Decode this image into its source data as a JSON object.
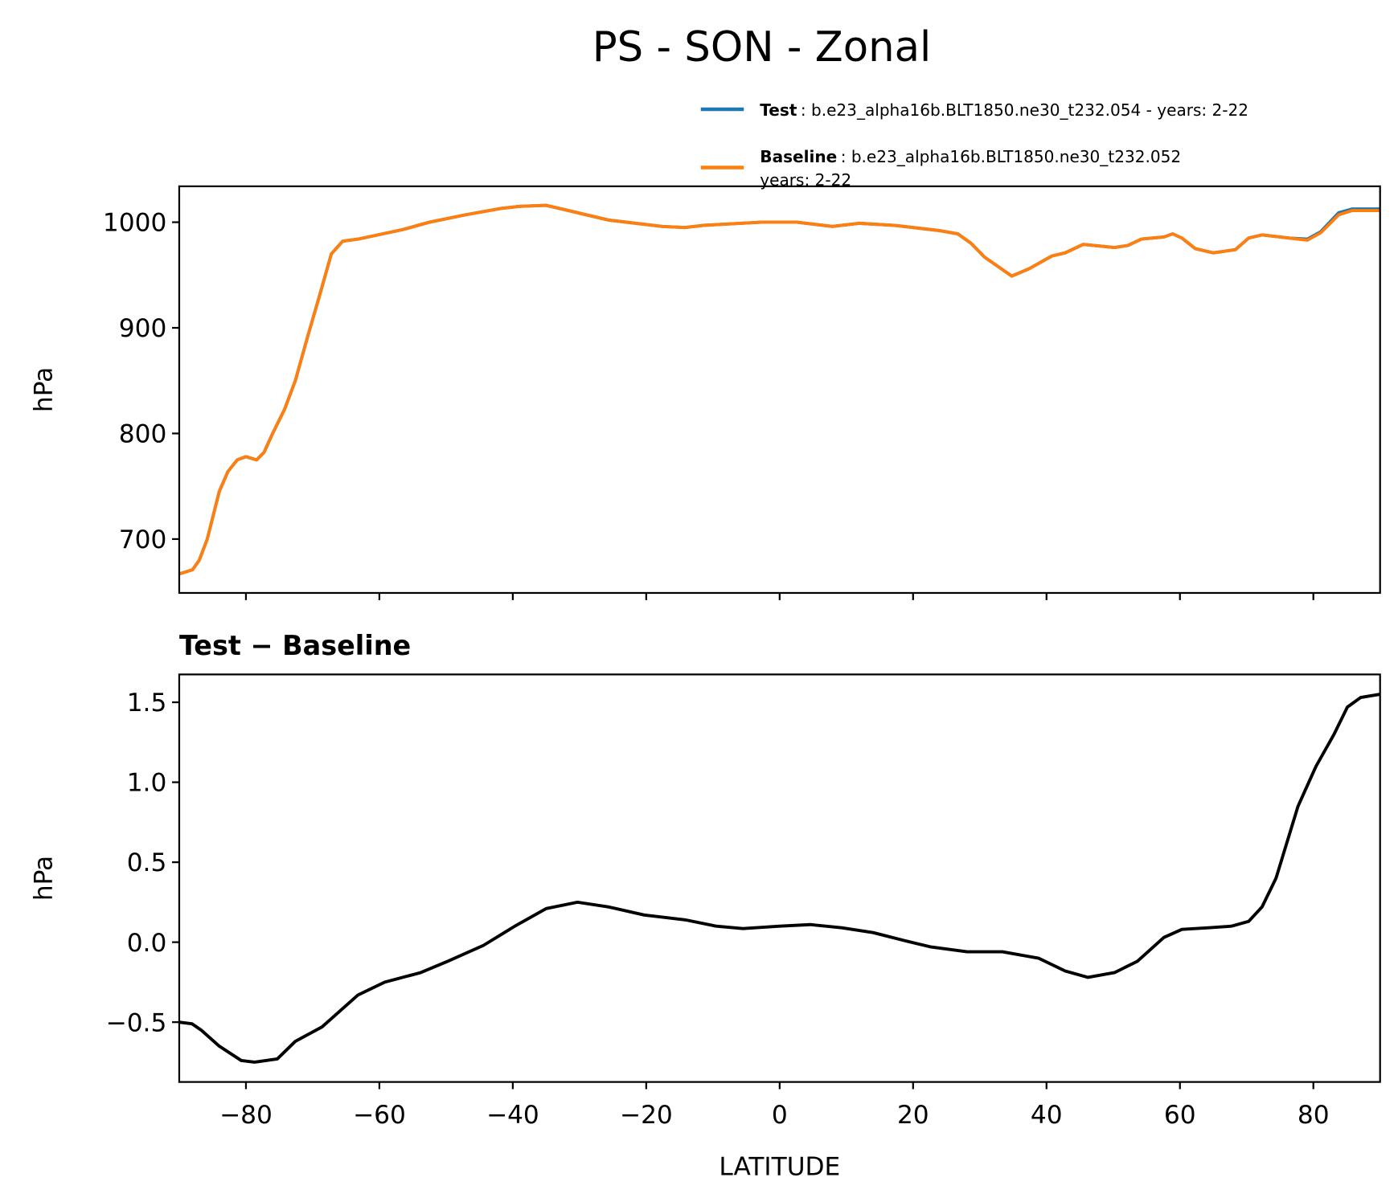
{
  "chart_data": [
    {
      "type": "line",
      "title": "PS - SON - Zonal",
      "ylabel": "hPa",
      "x": [
        -90,
        -88,
        -87,
        -85.8,
        -84,
        -82.7,
        -81.3,
        -80,
        -78.4,
        -77.3,
        -76,
        -74.2,
        -72.6,
        -70.6,
        -68.9,
        -67.2,
        -65.5,
        -63.2,
        -56.5,
        -52.5,
        -47.1,
        -41.8,
        -39,
        -35,
        -32.3,
        -28.3,
        -25.6,
        -17.6,
        -14.2,
        -11.5,
        -2.8,
        2.6,
        7.9,
        11.9,
        17.3,
        24,
        26.7,
        28.7,
        30.7,
        34.8,
        37.4,
        40.8,
        42.8,
        45.5,
        50.2,
        52.2,
        54.2,
        57.6,
        58.9,
        60.3,
        62.3,
        65,
        68.3,
        70.3,
        72.3,
        76.4,
        79.1,
        81.1,
        83.8,
        85.8,
        90
      ],
      "series": [
        {
          "name": "Test",
          "description": [
            ": b.e23_alpha16b.BLT1850.ne30_t232.054 - years: 2-22"
          ],
          "color": "#1f77b4",
          "values": [
            667,
            671,
            680,
            700,
            745,
            764,
            775,
            778,
            775,
            782,
            800,
            823,
            850,
            895,
            932,
            970,
            982,
            984,
            993,
            1000,
            1007,
            1013,
            1015,
            1016,
            1012,
            1006,
            1002,
            996,
            995,
            997,
            1000,
            1000,
            996,
            999,
            997,
            992,
            989,
            980,
            967,
            949,
            956,
            968,
            971,
            979,
            976,
            978,
            984,
            986,
            989,
            985,
            975,
            971,
            974,
            985,
            988,
            985,
            984,
            991,
            1009,
            1012.5,
            1012.5
          ]
        },
        {
          "name": "Baseline",
          "description": [
            ": b.e23_alpha16b.BLT1850.ne30_t232.052",
            "years: 2-22"
          ],
          "color": "#ff7f0e",
          "values": [
            667,
            671,
            680,
            700,
            745,
            764,
            775,
            778,
            775,
            782,
            800,
            823,
            850,
            895,
            932,
            970,
            982,
            984,
            993,
            1000,
            1007,
            1013,
            1015,
            1016,
            1012,
            1006,
            1002,
            996,
            995,
            997,
            1000,
            1000,
            996,
            999,
            997,
            992,
            989,
            980,
            967,
            949,
            956,
            968,
            971,
            979,
            976,
            978,
            984,
            986,
            989,
            985,
            975,
            971,
            974,
            985,
            988,
            985,
            983,
            990,
            1007,
            1011,
            1011
          ]
        }
      ],
      "xlim": [
        -90,
        90
      ],
      "xticks": [
        -80,
        -60,
        -40,
        -20,
        0,
        20,
        40,
        60,
        80
      ],
      "xtick_labels": false,
      "ylim": [
        649,
        1034
      ],
      "yticks": [
        700,
        800,
        900,
        1000
      ]
    },
    {
      "type": "line",
      "title": "Test − Baseline",
      "xlabel": "LATITUDE",
      "ylabel": "hPa",
      "color": "#000000",
      "x": [
        -90,
        -88.1,
        -86.7,
        -84,
        -80.7,
        -78.7,
        -75.3,
        -72.6,
        -68.6,
        -63.2,
        -59.2,
        -53.8,
        -49.8,
        -44.4,
        -39.7,
        -35,
        -30.3,
        -25.6,
        -20.3,
        -14.2,
        -9.5,
        -5.5,
        0,
        4.6,
        9.3,
        14,
        18.7,
        22.7,
        28.1,
        33.4,
        38.8,
        42.8,
        46.2,
        50.2,
        53.6,
        57.6,
        60.3,
        64.3,
        67.7,
        70.3,
        72.3,
        74.4,
        77.7,
        80.4,
        83.1,
        85.1,
        87.1,
        90
      ],
      "values": [
        -0.5,
        -0.51,
        -0.55,
        -0.65,
        -0.74,
        -0.75,
        -0.73,
        -0.62,
        -0.53,
        -0.33,
        -0.25,
        -0.19,
        -0.12,
        -0.02,
        0.1,
        0.21,
        0.25,
        0.22,
        0.17,
        0.14,
        0.1,
        0.085,
        0.1,
        0.11,
        0.09,
        0.06,
        0.01,
        -0.03,
        -0.06,
        -0.06,
        -0.1,
        -0.18,
        -0.22,
        -0.19,
        -0.12,
        0.03,
        0.08,
        0.09,
        0.1,
        0.13,
        0.22,
        0.4,
        0.85,
        1.1,
        1.3,
        1.47,
        1.53,
        1.55
      ],
      "xlim": [
        -90,
        90
      ],
      "xticks": [
        {
          "value": -80,
          "label": "−80"
        },
        {
          "value": -60,
          "label": "−60"
        },
        {
          "value": -40,
          "label": "−40"
        },
        {
          "value": -20,
          "label": "−20"
        },
        0,
        20,
        40,
        60,
        80
      ],
      "ylim": [
        -0.874,
        1.674
      ],
      "yticks": [
        {
          "value": -0.5,
          "label": "−0.5"
        },
        {
          "value": 0,
          "label": "0.0"
        },
        {
          "value": 0.5,
          "label": "0.5"
        },
        {
          "value": 1,
          "label": "1.0"
        },
        {
          "value": 1.5,
          "label": "1.5"
        }
      ]
    }
  ]
}
